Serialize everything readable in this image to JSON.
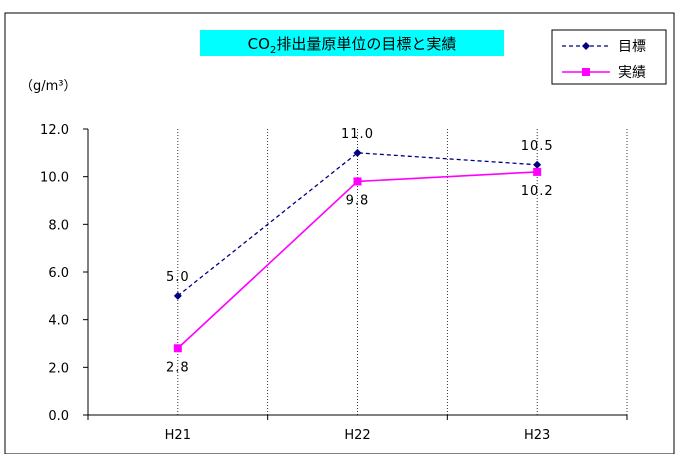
{
  "chart_data": {
    "type": "line",
    "title": "CO₂排出量原単位の目標と実績",
    "title_parts": {
      "pre": "CO",
      "sub": "2",
      "post": "排出量原単位の目標と実績"
    },
    "ylabel": "（g/m³）",
    "xlabel": "",
    "categories": [
      "H21",
      "H22",
      "H23"
    ],
    "ylim": [
      0,
      12
    ],
    "yticks": [
      "0.0",
      "2.0",
      "4.0",
      "6.0",
      "8.0",
      "10.0",
      "12.0"
    ],
    "grid": "vertical dotted",
    "legend_position": "top-right",
    "series": [
      {
        "name": "目標",
        "values": [
          5.0,
          11.0,
          10.5
        ],
        "labels": [
          "5.0",
          "11.0",
          "10.5"
        ],
        "color": "#000080",
        "style": "dashed",
        "marker": "diamond"
      },
      {
        "name": "実績",
        "values": [
          2.8,
          9.8,
          10.2
        ],
        "labels": [
          "2.8",
          "9.8",
          "10.2"
        ],
        "color": "#ff00ff",
        "style": "solid",
        "marker": "square"
      }
    ]
  },
  "colors": {
    "title_bg": "#00ffff",
    "axis": "#000000"
  }
}
